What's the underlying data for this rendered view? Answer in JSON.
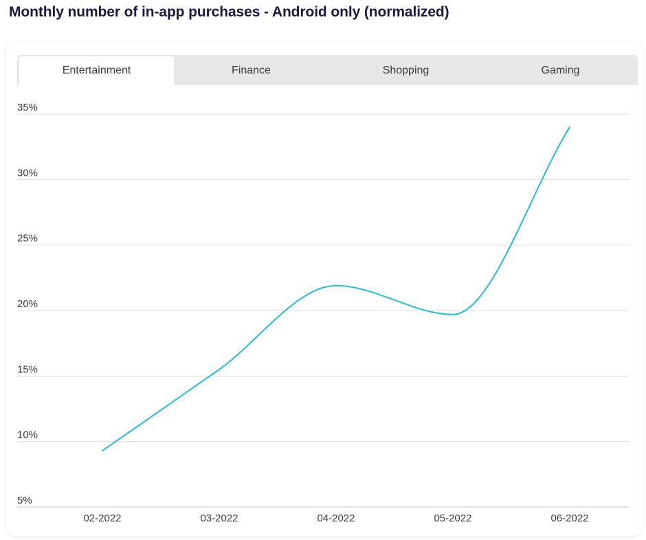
{
  "page": {
    "title": "Monthly number of in-app purchases - Android only  (normalized)"
  },
  "tabs": [
    {
      "label": "Entertainment",
      "active": true
    },
    {
      "label": "Finance",
      "active": false
    },
    {
      "label": "Shopping",
      "active": false
    },
    {
      "label": "Gaming",
      "active": false
    }
  ],
  "colors": {
    "title": "#1c1746",
    "line": "#22bcd6",
    "grid": "#dcdcdc",
    "tab_bar": "#e7e7e7",
    "tab_active": "#ffffff"
  },
  "chart_data": {
    "type": "line",
    "categories": [
      "02-2022",
      "03-2022",
      "04-2022",
      "05-2022",
      "06-2022"
    ],
    "series": [
      {
        "values": [
          9.3,
          15.5,
          21.9,
          19.7,
          34
        ]
      }
    ],
    "ylim": [
      5,
      35
    ],
    "yticks": [
      5,
      10,
      15,
      20,
      25,
      30,
      35
    ],
    "ytick_labels": [
      "5%",
      "10%",
      "15%",
      "20%",
      "25%",
      "30%",
      "35%"
    ],
    "grid": true,
    "smooth": true,
    "legend": "none"
  }
}
